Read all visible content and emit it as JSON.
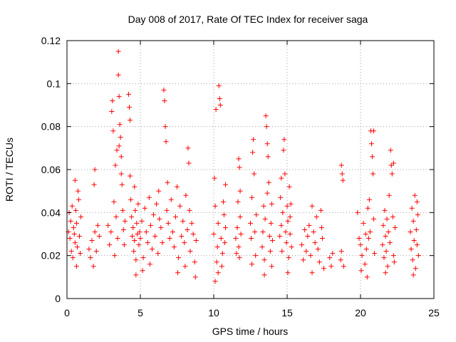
{
  "chart_data": {
    "type": "scatter",
    "title": "Day 008 of 2017, Rate Of TEC Index for receiver saga",
    "xlabel": "GPS time / hours",
    "ylabel": "ROTI / TECUs",
    "xlim": [
      0,
      25
    ],
    "ylim": [
      0,
      0.12
    ],
    "x_ticks": [
      0,
      5,
      10,
      15,
      20,
      25
    ],
    "x_tick_labels": [
      "0",
      "5",
      "10",
      "15",
      "20",
      "25"
    ],
    "y_ticks": [
      0,
      0.02,
      0.04,
      0.06,
      0.08,
      0.1,
      0.12
    ],
    "y_tick_labels": [
      "0",
      "0.02",
      "0.04",
      "0.06",
      "0.08",
      "0.1",
      "0.12"
    ],
    "grid": true,
    "marker": "plus",
    "color": "#ff0000",
    "series": [
      {
        "name": "ROTI",
        "points": [
          [
            0.1,
            0.031
          ],
          [
            0.15,
            0.04
          ],
          [
            0.2,
            0.028
          ],
          [
            0.25,
            0.036
          ],
          [
            0.3,
            0.022
          ],
          [
            0.35,
            0.043
          ],
          [
            0.4,
            0.019
          ],
          [
            0.45,
            0.033
          ],
          [
            0.5,
            0.03
          ],
          [
            0.55,
            0.026
          ],
          [
            0.6,
            0.041
          ],
          [
            0.65,
            0.035
          ],
          [
            0.7,
            0.024
          ],
          [
            0.75,
            0.05
          ],
          [
            0.8,
            0.046
          ],
          [
            0.85,
            0.029
          ],
          [
            0.9,
            0.021
          ],
          [
            0.95,
            0.038
          ],
          [
            0.55,
            0.055
          ],
          [
            0.65,
            0.015
          ],
          [
            1.5,
            0.023
          ],
          [
            1.6,
            0.019
          ],
          [
            1.7,
            0.027
          ],
          [
            1.8,
            0.015
          ],
          [
            1.9,
            0.031
          ],
          [
            1.85,
            0.053
          ],
          [
            1.9,
            0.06
          ],
          [
            2.0,
            0.022
          ],
          [
            2.1,
            0.034
          ],
          [
            2.2,
            0.029
          ],
          [
            2.8,
            0.034
          ],
          [
            2.9,
            0.025
          ],
          [
            3.0,
            0.031
          ],
          [
            3.05,
            0.087
          ],
          [
            3.1,
            0.092
          ],
          [
            3.15,
            0.078
          ],
          [
            3.2,
            0.045
          ],
          [
            3.25,
            0.02
          ],
          [
            3.3,
            0.062
          ],
          [
            3.35,
            0.038
          ],
          [
            3.4,
            0.069
          ],
          [
            3.45,
            0.028
          ],
          [
            3.5,
            0.115
          ],
          [
            3.5,
            0.104
          ],
          [
            3.55,
            0.094
          ],
          [
            3.6,
            0.081
          ],
          [
            3.65,
            0.075
          ],
          [
            3.7,
            0.066
          ],
          [
            3.75,
            0.053
          ],
          [
            3.8,
            0.041
          ],
          [
            3.85,
            0.032
          ],
          [
            3.9,
            0.025
          ],
          [
            3.55,
            0.071
          ],
          [
            3.7,
            0.058
          ],
          [
            3.95,
            0.036
          ],
          [
            4.2,
            0.095
          ],
          [
            4.25,
            0.089
          ],
          [
            4.3,
            0.083
          ],
          [
            4.35,
            0.046
          ],
          [
            4.4,
            0.038
          ],
          [
            4.45,
            0.029
          ],
          [
            4.5,
            0.033
          ],
          [
            4.55,
            0.022
          ],
          [
            4.6,
            0.027
          ],
          [
            4.65,
            0.041
          ],
          [
            4.7,
            0.018
          ],
          [
            4.75,
            0.035
          ],
          [
            4.8,
            0.03
          ],
          [
            4.85,
            0.044
          ],
          [
            4.9,
            0.025
          ],
          [
            4.95,
            0.031
          ],
          [
            4.3,
            0.057
          ],
          [
            4.6,
            0.052
          ],
          [
            4.7,
            0.011
          ],
          [
            5.0,
            0.028
          ],
          [
            5.1,
            0.036
          ],
          [
            5.2,
            0.019
          ],
          [
            5.3,
            0.042
          ],
          [
            5.4,
            0.031
          ],
          [
            5.5,
            0.026
          ],
          [
            5.6,
            0.047
          ],
          [
            5.7,
            0.034
          ],
          [
            5.8,
            0.023
          ],
          [
            5.9,
            0.039
          ],
          [
            6.0,
            0.029
          ],
          [
            6.1,
            0.044
          ],
          [
            6.2,
            0.021
          ],
          [
            6.3,
            0.037
          ],
          [
            6.4,
            0.033
          ],
          [
            6.5,
            0.026
          ],
          [
            6.6,
            0.097
          ],
          [
            6.65,
            0.092
          ],
          [
            6.7,
            0.08
          ],
          [
            6.75,
            0.073
          ],
          [
            6.8,
            0.041
          ],
          [
            6.9,
            0.035
          ],
          [
            7.0,
            0.028
          ],
          [
            5.15,
            0.013
          ],
          [
            5.65,
            0.016
          ],
          [
            6.25,
            0.05
          ],
          [
            6.85,
            0.054
          ],
          [
            7.1,
            0.046
          ],
          [
            7.2,
            0.031
          ],
          [
            7.3,
            0.024
          ],
          [
            7.4,
            0.038
          ],
          [
            7.5,
            0.052
          ],
          [
            7.6,
            0.019
          ],
          [
            7.7,
            0.043
          ],
          [
            7.8,
            0.029
          ],
          [
            7.9,
            0.036
          ],
          [
            8.0,
            0.026
          ],
          [
            8.1,
            0.048
          ],
          [
            8.2,
            0.032
          ],
          [
            8.25,
            0.07
          ],
          [
            8.3,
            0.063
          ],
          [
            8.35,
            0.041
          ],
          [
            8.4,
            0.022
          ],
          [
            8.5,
            0.035
          ],
          [
            8.6,
            0.03
          ],
          [
            8.7,
            0.017
          ],
          [
            8.8,
            0.027
          ],
          [
            7.55,
            0.012
          ],
          [
            8.05,
            0.015
          ],
          [
            8.75,
            0.01
          ],
          [
            10.0,
            0.03
          ],
          [
            10.05,
            0.056
          ],
          [
            10.1,
            0.043
          ],
          [
            10.15,
            0.088
          ],
          [
            10.2,
            0.017
          ],
          [
            10.25,
            0.024
          ],
          [
            10.3,
            0.035
          ],
          [
            10.35,
            0.099
          ],
          [
            10.4,
            0.093
          ],
          [
            10.45,
            0.09
          ],
          [
            10.5,
            0.028
          ],
          [
            10.55,
            0.015
          ],
          [
            10.6,
            0.021
          ],
          [
            10.65,
            0.045
          ],
          [
            10.7,
            0.039
          ],
          [
            10.75,
            0.026
          ],
          [
            10.8,
            0.033
          ],
          [
            10.1,
            0.008
          ],
          [
            10.3,
            0.012
          ],
          [
            10.8,
            0.053
          ],
          [
            11.5,
            0.028
          ],
          [
            11.6,
            0.033
          ],
          [
            11.7,
            0.024
          ],
          [
            11.8,
            0.038
          ],
          [
            11.55,
            0.021
          ],
          [
            11.65,
            0.045
          ],
          [
            11.75,
            0.019
          ],
          [
            11.85,
            0.03
          ],
          [
            11.7,
            0.065
          ],
          [
            11.75,
            0.061
          ],
          [
            11.8,
            0.05
          ],
          [
            12.5,
            0.035
          ],
          [
            12.55,
            0.028
          ],
          [
            12.6,
            0.047
          ],
          [
            12.65,
            0.068
          ],
          [
            12.7,
            0.074
          ],
          [
            12.75,
            0.058
          ],
          [
            12.8,
            0.031
          ],
          [
            12.85,
            0.02
          ],
          [
            12.9,
            0.039
          ],
          [
            12.6,
            0.016
          ],
          [
            13.3,
            0.024
          ],
          [
            13.35,
            0.031
          ],
          [
            13.4,
            0.043
          ],
          [
            13.45,
            0.018
          ],
          [
            13.5,
            0.037
          ],
          [
            13.55,
            0.085
          ],
          [
            13.6,
            0.08
          ],
          [
            13.65,
            0.072
          ],
          [
            13.7,
            0.066
          ],
          [
            13.75,
            0.054
          ],
          [
            13.8,
            0.029
          ],
          [
            13.85,
            0.022
          ],
          [
            13.9,
            0.035
          ],
          [
            13.95,
            0.015
          ],
          [
            14.0,
            0.027
          ],
          [
            13.45,
            0.011
          ],
          [
            13.65,
            0.049
          ],
          [
            13.95,
            0.044
          ],
          [
            14.5,
            0.029
          ],
          [
            14.55,
            0.047
          ],
          [
            14.6,
            0.034
          ],
          [
            14.65,
            0.022
          ],
          [
            14.7,
            0.04
          ],
          [
            14.75,
            0.069
          ],
          [
            14.8,
            0.074
          ],
          [
            14.85,
            0.058
          ],
          [
            14.9,
            0.031
          ],
          [
            14.95,
            0.026
          ],
          [
            15.0,
            0.043
          ],
          [
            15.05,
            0.036
          ],
          [
            15.1,
            0.019
          ],
          [
            15.15,
            0.052
          ],
          [
            15.2,
            0.03
          ],
          [
            15.25,
            0.044
          ],
          [
            15.3,
            0.024
          ],
          [
            14.6,
            0.056
          ],
          [
            15.05,
            0.012
          ],
          [
            15.2,
            0.038
          ],
          [
            16.0,
            0.025
          ],
          [
            16.1,
            0.018
          ],
          [
            16.2,
            0.032
          ],
          [
            16.3,
            0.022
          ],
          [
            16.4,
            0.029
          ],
          [
            16.5,
            0.034
          ],
          [
            16.6,
            0.02
          ],
          [
            16.7,
            0.043
          ],
          [
            16.8,
            0.031
          ],
          [
            16.9,
            0.026
          ],
          [
            17.0,
            0.038
          ],
          [
            17.1,
            0.023
          ],
          [
            17.2,
            0.017
          ],
          [
            17.3,
            0.041
          ],
          [
            17.4,
            0.028
          ],
          [
            17.5,
            0.014
          ],
          [
            16.7,
            0.012
          ],
          [
            17.35,
            0.033
          ],
          [
            17.9,
            0.019
          ],
          [
            18.0,
            0.015
          ],
          [
            18.1,
            0.021
          ],
          [
            18.7,
            0.062
          ],
          [
            18.75,
            0.058
          ],
          [
            18.8,
            0.055
          ],
          [
            18.65,
            0.018
          ],
          [
            18.7,
            0.022
          ],
          [
            18.85,
            0.015
          ],
          [
            19.8,
            0.04
          ],
          [
            19.9,
            0.028
          ],
          [
            20.0,
            0.025
          ],
          [
            20.1,
            0.02
          ],
          [
            20.2,
            0.035
          ],
          [
            20.3,
            0.016
          ],
          [
            20.35,
            0.03
          ],
          [
            20.4,
            0.023
          ],
          [
            20.5,
            0.042
          ],
          [
            20.55,
            0.028
          ],
          [
            20.6,
            0.046
          ],
          [
            20.65,
            0.031
          ],
          [
            20.7,
            0.078
          ],
          [
            20.75,
            0.072
          ],
          [
            20.8,
            0.066
          ],
          [
            20.85,
            0.058
          ],
          [
            20.9,
            0.037
          ],
          [
            20.95,
            0.021
          ],
          [
            20.05,
            0.013
          ],
          [
            20.45,
            0.01
          ],
          [
            20.9,
            0.078
          ],
          [
            21.5,
            0.025
          ],
          [
            21.55,
            0.034
          ],
          [
            21.6,
            0.019
          ],
          [
            21.65,
            0.041
          ],
          [
            21.7,
            0.029
          ],
          [
            21.75,
            0.022
          ],
          [
            21.8,
            0.037
          ],
          [
            21.85,
            0.015
          ],
          [
            21.9,
            0.031
          ],
          [
            21.95,
            0.048
          ],
          [
            22.0,
            0.026
          ],
          [
            22.05,
            0.069
          ],
          [
            22.1,
            0.062
          ],
          [
            22.15,
            0.058
          ],
          [
            22.2,
            0.038
          ],
          [
            22.25,
            0.02
          ],
          [
            22.3,
            0.017
          ],
          [
            22.35,
            0.033
          ],
          [
            21.7,
            0.012
          ],
          [
            22.25,
            0.063
          ],
          [
            23.4,
            0.031
          ],
          [
            23.45,
            0.023
          ],
          [
            23.5,
            0.042
          ],
          [
            23.55,
            0.018
          ],
          [
            23.6,
            0.036
          ],
          [
            23.65,
            0.027
          ],
          [
            23.7,
            0.048
          ],
          [
            23.75,
            0.014
          ],
          [
            23.8,
            0.032
          ],
          [
            23.85,
            0.025
          ],
          [
            23.9,
            0.039
          ],
          [
            23.95,
            0.02
          ],
          [
            23.6,
            0.011
          ],
          [
            23.85,
            0.045
          ]
        ]
      }
    ]
  }
}
